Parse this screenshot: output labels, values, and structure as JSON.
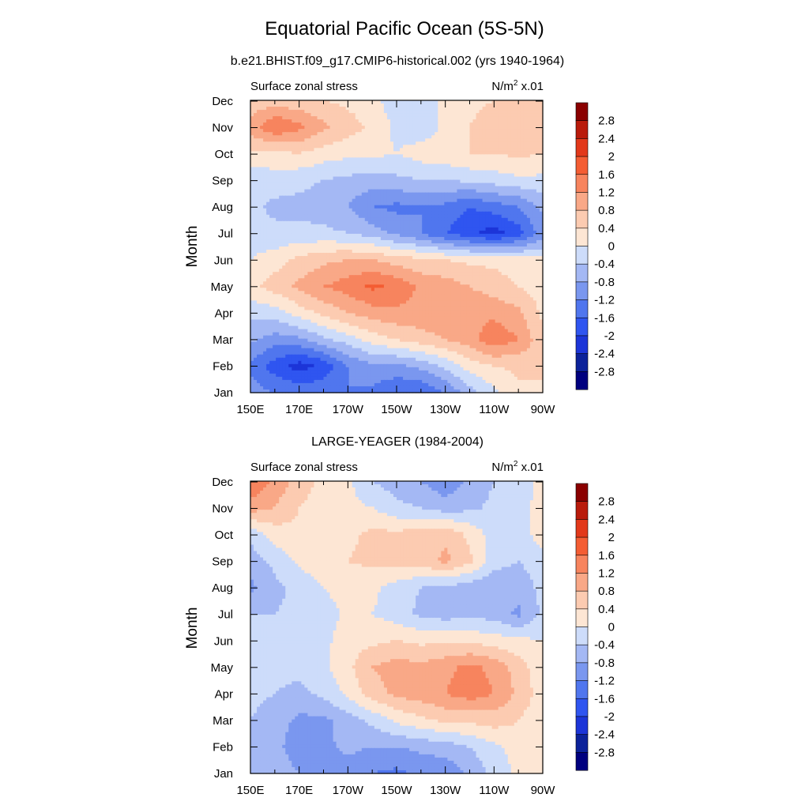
{
  "figure": {
    "title": "Equatorial Pacific Ocean (5S-5N)",
    "panel_titles": [
      "b.e21.BHIST.f09_g17.CMIP6-historical.002 (yrs 1940-1964)",
      "LARGE-YEAGER (1984-2004)"
    ]
  },
  "colors": {
    "levels": [
      -2.8,
      -2.4,
      -2.0,
      -1.6,
      -1.2,
      -0.8,
      -0.4,
      0,
      0.4,
      0.8,
      1.2,
      1.6,
      2.0,
      2.4,
      2.8
    ],
    "palette": [
      "#00007f",
      "#0c229a",
      "#1c35d8",
      "#2f55f0",
      "#5076ee",
      "#7a97ef",
      "#a4b8f4",
      "#cddcfa",
      "#fde6d4",
      "#fccbb1",
      "#f9a887",
      "#f7845e",
      "#f45d33",
      "#e2381a",
      "#b91b0b",
      "#8a0000"
    ]
  },
  "chart_data": [
    {
      "type": "heatmap",
      "title": "b.e21.BHIST.f09_g17.CMIP6-historical.002 (yrs 1940-1964)",
      "left_label": "Surface zonal stress",
      "right_label": "N/m",
      "right_label_sup": "2",
      "right_label_suffix": " x.01",
      "ylabel": "Month",
      "xlabel": "",
      "x_ticklabels": [
        "150E",
        "170E",
        "170W",
        "150W",
        "130W",
        "110W",
        "90W"
      ],
      "x": [
        150,
        160,
        170,
        180,
        190,
        200,
        210,
        220,
        230,
        240,
        250,
        260,
        270
      ],
      "y_ticklabels": [
        "Jan",
        "Feb",
        "Mar",
        "Apr",
        "May",
        "Jun",
        "Jul",
        "Aug",
        "Sep",
        "Oct",
        "Nov",
        "Dec"
      ],
      "y": [
        "Jan",
        "Feb",
        "Mar",
        "Apr",
        "May",
        "Jun",
        "Jul",
        "Aug",
        "Sep",
        "Oct",
        "Nov",
        "Dec"
      ],
      "z": [
        [
          -1.0,
          -1.2,
          -1.3,
          -1.3,
          -1.2,
          -1.3,
          -1.6,
          -1.6,
          -1.2,
          -0.6,
          -0.1,
          0.3,
          0.3
        ],
        [
          -1.3,
          -1.8,
          -2.2,
          -1.9,
          -1.2,
          -0.9,
          -0.9,
          -0.7,
          -0.3,
          0.2,
          0.4,
          0.5,
          0.5
        ],
        [
          -0.7,
          -1.0,
          -0.9,
          -0.5,
          -0.2,
          0.2,
          0.4,
          0.6,
          0.8,
          1.0,
          1.5,
          1.2,
          0.5
        ],
        [
          -0.3,
          -0.2,
          0.2,
          0.5,
          0.8,
          1.0,
          1.1,
          1.1,
          1.2,
          1.1,
          1.1,
          0.9,
          0.3
        ],
        [
          0.3,
          0.6,
          0.9,
          1.2,
          1.4,
          1.7,
          1.5,
          1.1,
          1.0,
          0.8,
          0.6,
          0.4,
          0.2
        ],
        [
          0.0,
          0.2,
          0.5,
          0.7,
          0.8,
          0.8,
          0.6,
          0.5,
          0.4,
          0.3,
          0.3,
          0.2,
          0.1
        ],
        [
          -0.2,
          -0.3,
          -0.3,
          -0.3,
          -0.4,
          -0.6,
          -0.9,
          -1.2,
          -1.6,
          -1.9,
          -2.2,
          -1.8,
          -1.0
        ],
        [
          -0.3,
          -0.5,
          -0.5,
          -0.6,
          -0.8,
          -1.2,
          -1.3,
          -1.2,
          -1.3,
          -1.6,
          -1.4,
          -1.2,
          -0.7
        ],
        [
          -0.3,
          -0.2,
          -0.3,
          -0.4,
          -0.5,
          -0.6,
          -0.5,
          -0.4,
          -0.4,
          -0.3,
          -0.2,
          -0.1,
          -0.1
        ],
        [
          0.3,
          0.3,
          0.4,
          0.2,
          0.1,
          0.1,
          0.0,
          0.2,
          0.3,
          0.4,
          0.4,
          0.5,
          0.4
        ],
        [
          1.0,
          1.6,
          1.3,
          0.9,
          0.6,
          0.3,
          -0.1,
          -0.3,
          0.1,
          0.4,
          0.6,
          0.7,
          0.5
        ],
        [
          0.5,
          0.6,
          0.5,
          0.4,
          0.3,
          0.1,
          -0.2,
          -0.3,
          0.1,
          0.3,
          0.4,
          0.5,
          0.4
        ]
      ],
      "colorbar_ticks": [
        "2.8",
        "2.4",
        "2",
        "1.6",
        "1.2",
        "0.8",
        "0.4",
        "0",
        "-0.4",
        "-0.8",
        "-1.2",
        "-1.6",
        "-2",
        "-2.4",
        "-2.8"
      ]
    },
    {
      "type": "heatmap",
      "title": "LARGE-YEAGER (1984-2004)",
      "left_label": "Surface zonal stress",
      "right_label": "N/m",
      "right_label_sup": "2",
      "right_label_suffix": " x.01",
      "ylabel": "Month",
      "xlabel": "",
      "x_ticklabels": [
        "150E",
        "170E",
        "170W",
        "150W",
        "130W",
        "110W",
        "90W"
      ],
      "x": [
        150,
        160,
        170,
        180,
        190,
        200,
        210,
        220,
        230,
        240,
        250,
        260,
        270
      ],
      "y_ticklabels": [
        "Jan",
        "Feb",
        "Mar",
        "Apr",
        "May",
        "Jun",
        "Jul",
        "Aug",
        "Sep",
        "Oct",
        "Nov",
        "Dec"
      ],
      "y": [
        "Jan",
        "Feb",
        "Mar",
        "Apr",
        "May",
        "Jun",
        "Jul",
        "Aug",
        "Sep",
        "Oct",
        "Nov",
        "Dec"
      ],
      "z": [
        [
          -0.5,
          -0.6,
          -0.8,
          -0.9,
          -1.0,
          -1.2,
          -1.3,
          -1.1,
          -1.1,
          -0.7,
          -0.3,
          0.1,
          0.2
        ],
        [
          -0.5,
          -0.7,
          -1.0,
          -0.9,
          -0.7,
          -0.8,
          -0.8,
          -0.7,
          -0.6,
          -0.4,
          -0.1,
          0.2,
          0.2
        ],
        [
          -0.4,
          -0.6,
          -0.9,
          -0.9,
          -0.6,
          -0.3,
          0.1,
          0.3,
          0.5,
          0.5,
          0.6,
          0.4,
          0.1
        ],
        [
          -0.3,
          -0.4,
          -0.5,
          -0.3,
          0.1,
          0.6,
          0.9,
          1.0,
          1.2,
          1.4,
          1.2,
          0.7,
          0.2
        ],
        [
          -0.2,
          -0.3,
          -0.3,
          -0.1,
          0.3,
          0.8,
          1.0,
          0.9,
          1.1,
          1.3,
          1.1,
          0.6,
          0.1
        ],
        [
          -0.2,
          -0.3,
          -0.3,
          -0.1,
          0.2,
          0.3,
          0.4,
          0.3,
          0.3,
          0.3,
          0.2,
          0.1,
          0.0
        ],
        [
          -0.4,
          -0.4,
          -0.3,
          -0.2,
          0.1,
          0.0,
          -0.2,
          -0.5,
          -0.6,
          -0.5,
          -0.6,
          -0.9,
          -0.3
        ],
        [
          -0.9,
          -0.5,
          -0.3,
          0.0,
          0.2,
          0.1,
          -0.2,
          -0.4,
          -0.5,
          -0.6,
          -0.8,
          -0.6,
          -0.3
        ],
        [
          -0.6,
          -0.3,
          0.1,
          0.3,
          0.4,
          0.5,
          0.6,
          0.6,
          0.9,
          0.5,
          -0.2,
          -0.4,
          -0.2
        ],
        [
          -0.3,
          0.2,
          0.3,
          0.3,
          0.3,
          0.5,
          0.5,
          0.6,
          0.7,
          0.3,
          -0.2,
          -0.3,
          0.3
        ],
        [
          1.0,
          0.8,
          0.4,
          0.2,
          0.1,
          0.0,
          -0.3,
          -0.4,
          -0.6,
          -0.5,
          -0.3,
          -0.2,
          0.2
        ],
        [
          1.6,
          1.1,
          0.6,
          0.3,
          0.1,
          -0.4,
          -0.6,
          -0.8,
          -1.1,
          -0.7,
          -0.4,
          -0.2,
          0.1
        ]
      ],
      "colorbar_ticks": [
        "2.8",
        "2.4",
        "2",
        "1.6",
        "1.2",
        "0.8",
        "0.4",
        "0",
        "-0.4",
        "-0.8",
        "-1.2",
        "-1.6",
        "-2",
        "-2.4",
        "-2.8"
      ]
    }
  ]
}
